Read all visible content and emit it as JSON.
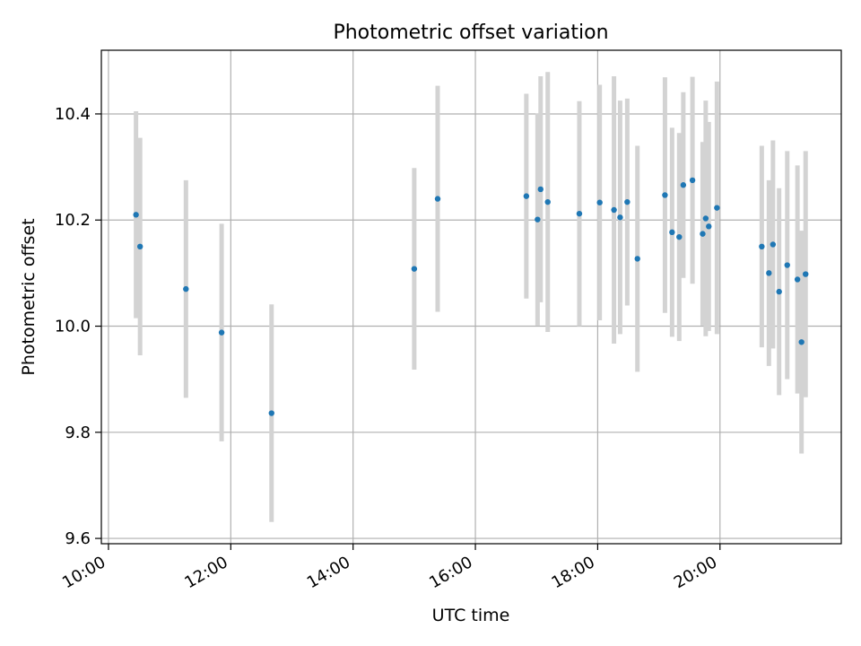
{
  "chart_data": {
    "type": "scatter",
    "title": "Photometric offset variation",
    "xlabel": "UTC time",
    "ylabel": "Photometric offset",
    "xlim": [
      "09:53",
      "21:59"
    ],
    "ylim": [
      9.59,
      10.52
    ],
    "x_ticks": [
      "10:00",
      "12:00",
      "14:00",
      "16:00",
      "18:00",
      "20:00"
    ],
    "y_ticks": [
      9.6,
      9.8,
      10.0,
      10.2,
      10.4
    ],
    "grid": true,
    "marker_color": "#1f77b4",
    "errorbar_color": "#d3d3d3",
    "series": [
      {
        "points": [
          {
            "x": "10:27",
            "y": 10.21,
            "err": 0.195
          },
          {
            "x": "10:31",
            "y": 10.15,
            "err": 0.205
          },
          {
            "x": "11:16",
            "y": 10.07,
            "err": 0.205
          },
          {
            "x": "11:51",
            "y": 9.988,
            "err": 0.205
          },
          {
            "x": "12:40",
            "y": 9.836,
            "err": 0.205
          },
          {
            "x": "15:00",
            "y": 10.108,
            "err": 0.19
          },
          {
            "x": "15:23",
            "y": 10.24,
            "err": 0.213
          },
          {
            "x": "16:50",
            "y": 10.245,
            "err": 0.193
          },
          {
            "x": "17:01",
            "y": 10.201,
            "err": 0.2
          },
          {
            "x": "17:04",
            "y": 10.258,
            "err": 0.213
          },
          {
            "x": "17:11",
            "y": 10.234,
            "err": 0.245
          },
          {
            "x": "17:42",
            "y": 10.212,
            "err": 0.212
          },
          {
            "x": "18:02",
            "y": 10.233,
            "err": 0.222
          },
          {
            "x": "18:16",
            "y": 10.219,
            "err": 0.252
          },
          {
            "x": "18:22",
            "y": 10.205,
            "err": 0.22
          },
          {
            "x": "18:29",
            "y": 10.234,
            "err": 0.195
          },
          {
            "x": "18:39",
            "y": 10.127,
            "err": 0.213
          },
          {
            "x": "19:06",
            "y": 10.247,
            "err": 0.222
          },
          {
            "x": "19:13",
            "y": 10.177,
            "err": 0.197
          },
          {
            "x": "19:20",
            "y": 10.168,
            "err": 0.196
          },
          {
            "x": "19:24",
            "y": 10.266,
            "err": 0.175
          },
          {
            "x": "19:33",
            "y": 10.275,
            "err": 0.195
          },
          {
            "x": "19:43",
            "y": 10.174,
            "err": 0.173
          },
          {
            "x": "19:46",
            "y": 10.203,
            "err": 0.222
          },
          {
            "x": "19:49",
            "y": 10.188,
            "err": 0.197
          },
          {
            "x": "19:57",
            "y": 10.223,
            "err": 0.238
          },
          {
            "x": "20:41",
            "y": 10.15,
            "err": 0.19
          },
          {
            "x": "20:48",
            "y": 10.1,
            "err": 0.175
          },
          {
            "x": "20:52",
            "y": 10.154,
            "err": 0.196
          },
          {
            "x": "20:58",
            "y": 10.065,
            "err": 0.195
          },
          {
            "x": "21:06",
            "y": 10.115,
            "err": 0.215
          },
          {
            "x": "21:16",
            "y": 10.088,
            "err": 0.215
          },
          {
            "x": "21:20",
            "y": 9.97,
            "err": 0.21
          },
          {
            "x": "21:24",
            "y": 10.098,
            "err": 0.232
          }
        ]
      }
    ]
  }
}
